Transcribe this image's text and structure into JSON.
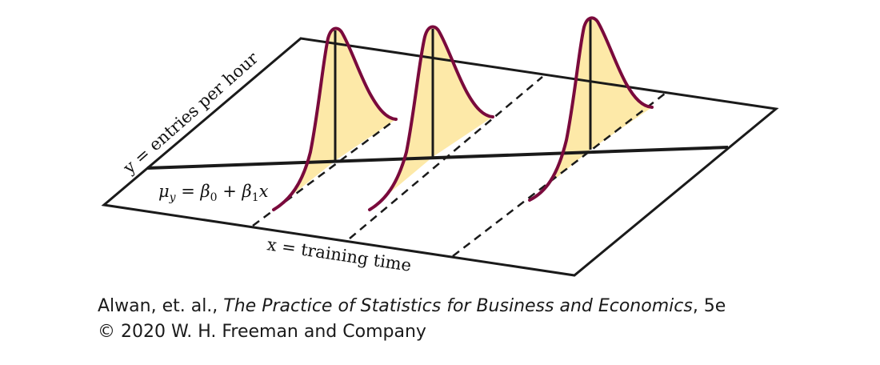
{
  "diagram": {
    "y_axis_label": "y = entries per hour",
    "regression_label": {
      "mu": "μ",
      "mu_sub": "y",
      "equals": " = ",
      "beta0": "β",
      "beta0_sub": "0",
      "plus": " + ",
      "beta1": "β",
      "beta1_sub": "1",
      "x": "x"
    },
    "x_axis_label": "x = training time",
    "colors": {
      "curve": "#7a0a3c",
      "fill": "#fde9a8",
      "lines": "#1a1a1a"
    },
    "distribution_count": 3
  },
  "credit": {
    "authors": "Alwan, et. al., ",
    "book_title": "The Practice of Statistics for Business and Economics",
    "edition": ", 5e",
    "copyright": "© 2020 W. H. Freeman and Company"
  }
}
